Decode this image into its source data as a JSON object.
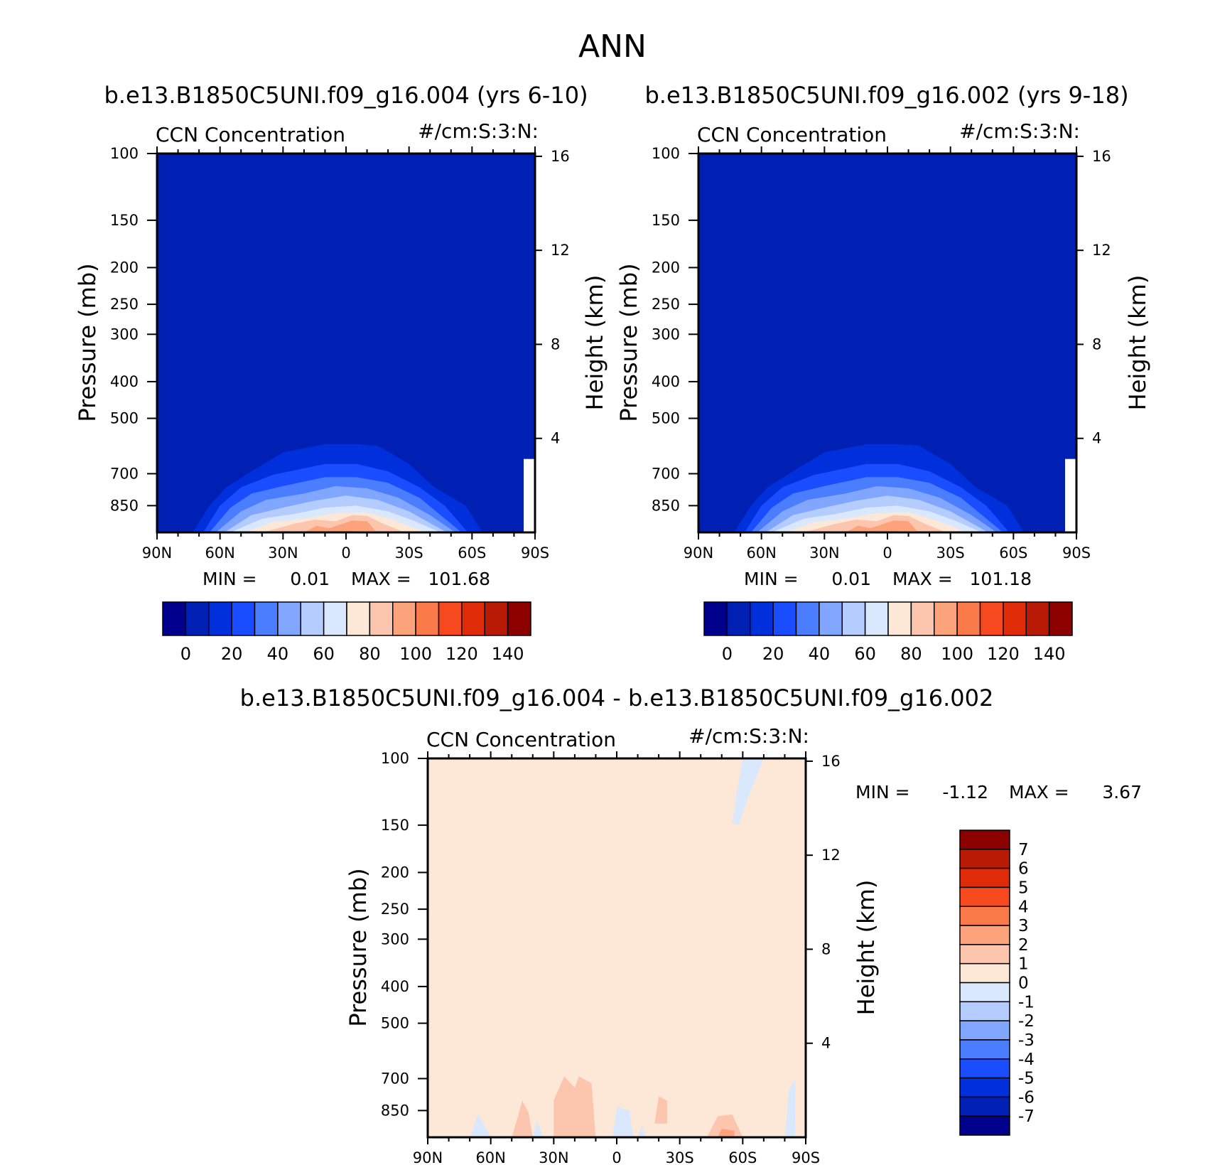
{
  "figure": {
    "season": "ANN"
  },
  "chart_data": [
    {
      "type": "heatmap",
      "panel": "case",
      "title": "b.e13.B1850C5UNI.f09_g16.004 (yrs 6-10)",
      "variable": "CCN Concentration",
      "units": "#/cm:S:3:N:",
      "ylabel": "Pressure (mb)",
      "y2label": "Height (km)",
      "x_ticks": [
        "90N",
        "60N",
        "30N",
        "0",
        "30S",
        "60S",
        "90S"
      ],
      "y_ticks": [
        100,
        150,
        200,
        250,
        300,
        400,
        500,
        700,
        850
      ],
      "y2_ticks": [
        16,
        12,
        8,
        4
      ],
      "ylim": [
        100,
        1000
      ],
      "min_label": "MIN =",
      "max_label": "MAX =",
      "min": "0.01",
      "max": "101.68",
      "colorbar_ticks": [
        "0",
        "20",
        "40",
        "60",
        "80",
        "100",
        "120",
        "140"
      ],
      "colorbar_colors": [
        "#00008c",
        "#0020b4",
        "#0030dc",
        "#1a4dff",
        "#4a7dff",
        "#80a6ff",
        "#b4ccff",
        "#d9e8fc",
        "#fde8d8",
        "#fcc6ae",
        "#fca37c",
        "#fb7a4a",
        "#f6491f",
        "#e02b08",
        "#b81a06",
        "#8c0000"
      ],
      "levels_note": "contour levels 0-150 by 10",
      "features": [
        {
          "desc": "low CCN above 500 mb",
          "value": 5
        },
        {
          "desc": "surface maximum near equator",
          "value": 100
        }
      ]
    },
    {
      "type": "heatmap",
      "panel": "control",
      "title": "b.e13.B1850C5UNI.f09_g16.002 (yrs 9-18)",
      "variable": "CCN Concentration",
      "units": "#/cm:S:3:N:",
      "ylabel": "Pressure (mb)",
      "y2label": "Height (km)",
      "x_ticks": [
        "90N",
        "60N",
        "30N",
        "0",
        "30S",
        "60S",
        "90S"
      ],
      "y_ticks": [
        100,
        150,
        200,
        250,
        300,
        400,
        500,
        700,
        850
      ],
      "y2_ticks": [
        16,
        12,
        8,
        4
      ],
      "ylim": [
        100,
        1000
      ],
      "min_label": "MIN =",
      "max_label": "MAX =",
      "min": "0.01",
      "max": "101.18",
      "colorbar_ticks": [
        "0",
        "20",
        "40",
        "60",
        "80",
        "100",
        "120",
        "140"
      ],
      "colorbar_colors": [
        "#00008c",
        "#0020b4",
        "#0030dc",
        "#1a4dff",
        "#4a7dff",
        "#80a6ff",
        "#b4ccff",
        "#d9e8fc",
        "#fde8d8",
        "#fcc6ae",
        "#fca37c",
        "#fb7a4a",
        "#f6491f",
        "#e02b08",
        "#b81a06",
        "#8c0000"
      ]
    },
    {
      "type": "heatmap",
      "panel": "difference",
      "title": "b.e13.B1850C5UNI.f09_g16.004 - b.e13.B1850C5UNI.f09_g16.002",
      "variable": "CCN Concentration",
      "units": "#/cm:S:3:N:",
      "ylabel": "Pressure (mb)",
      "y2label": "Height (km)",
      "x_ticks": [
        "90N",
        "60N",
        "30N",
        "0",
        "30S",
        "60S",
        "90S"
      ],
      "y_ticks": [
        100,
        150,
        200,
        250,
        300,
        400,
        500,
        700,
        850
      ],
      "y2_ticks": [
        16,
        12,
        8,
        4
      ],
      "ylim": [
        100,
        1000
      ],
      "min_label": "MIN =",
      "max_label": "MAX =",
      "min": "-1.12",
      "max": "3.67",
      "colorbar_ticks": [
        "7",
        "6",
        "5",
        "4",
        "3",
        "2",
        "1",
        "0",
        "-1",
        "-2",
        "-3",
        "-4",
        "-5",
        "-6",
        "-7"
      ],
      "colorbar_colors": [
        "#8c0000",
        "#b81a06",
        "#e02b08",
        "#f6491f",
        "#fb7a4a",
        "#fca37c",
        "#fcc6ae",
        "#fde8d8",
        "#d9e8fc",
        "#b4ccff",
        "#80a6ff",
        "#4a7dff",
        "#1a4dff",
        "#0030dc",
        "#0020b4",
        "#00008c"
      ]
    }
  ]
}
